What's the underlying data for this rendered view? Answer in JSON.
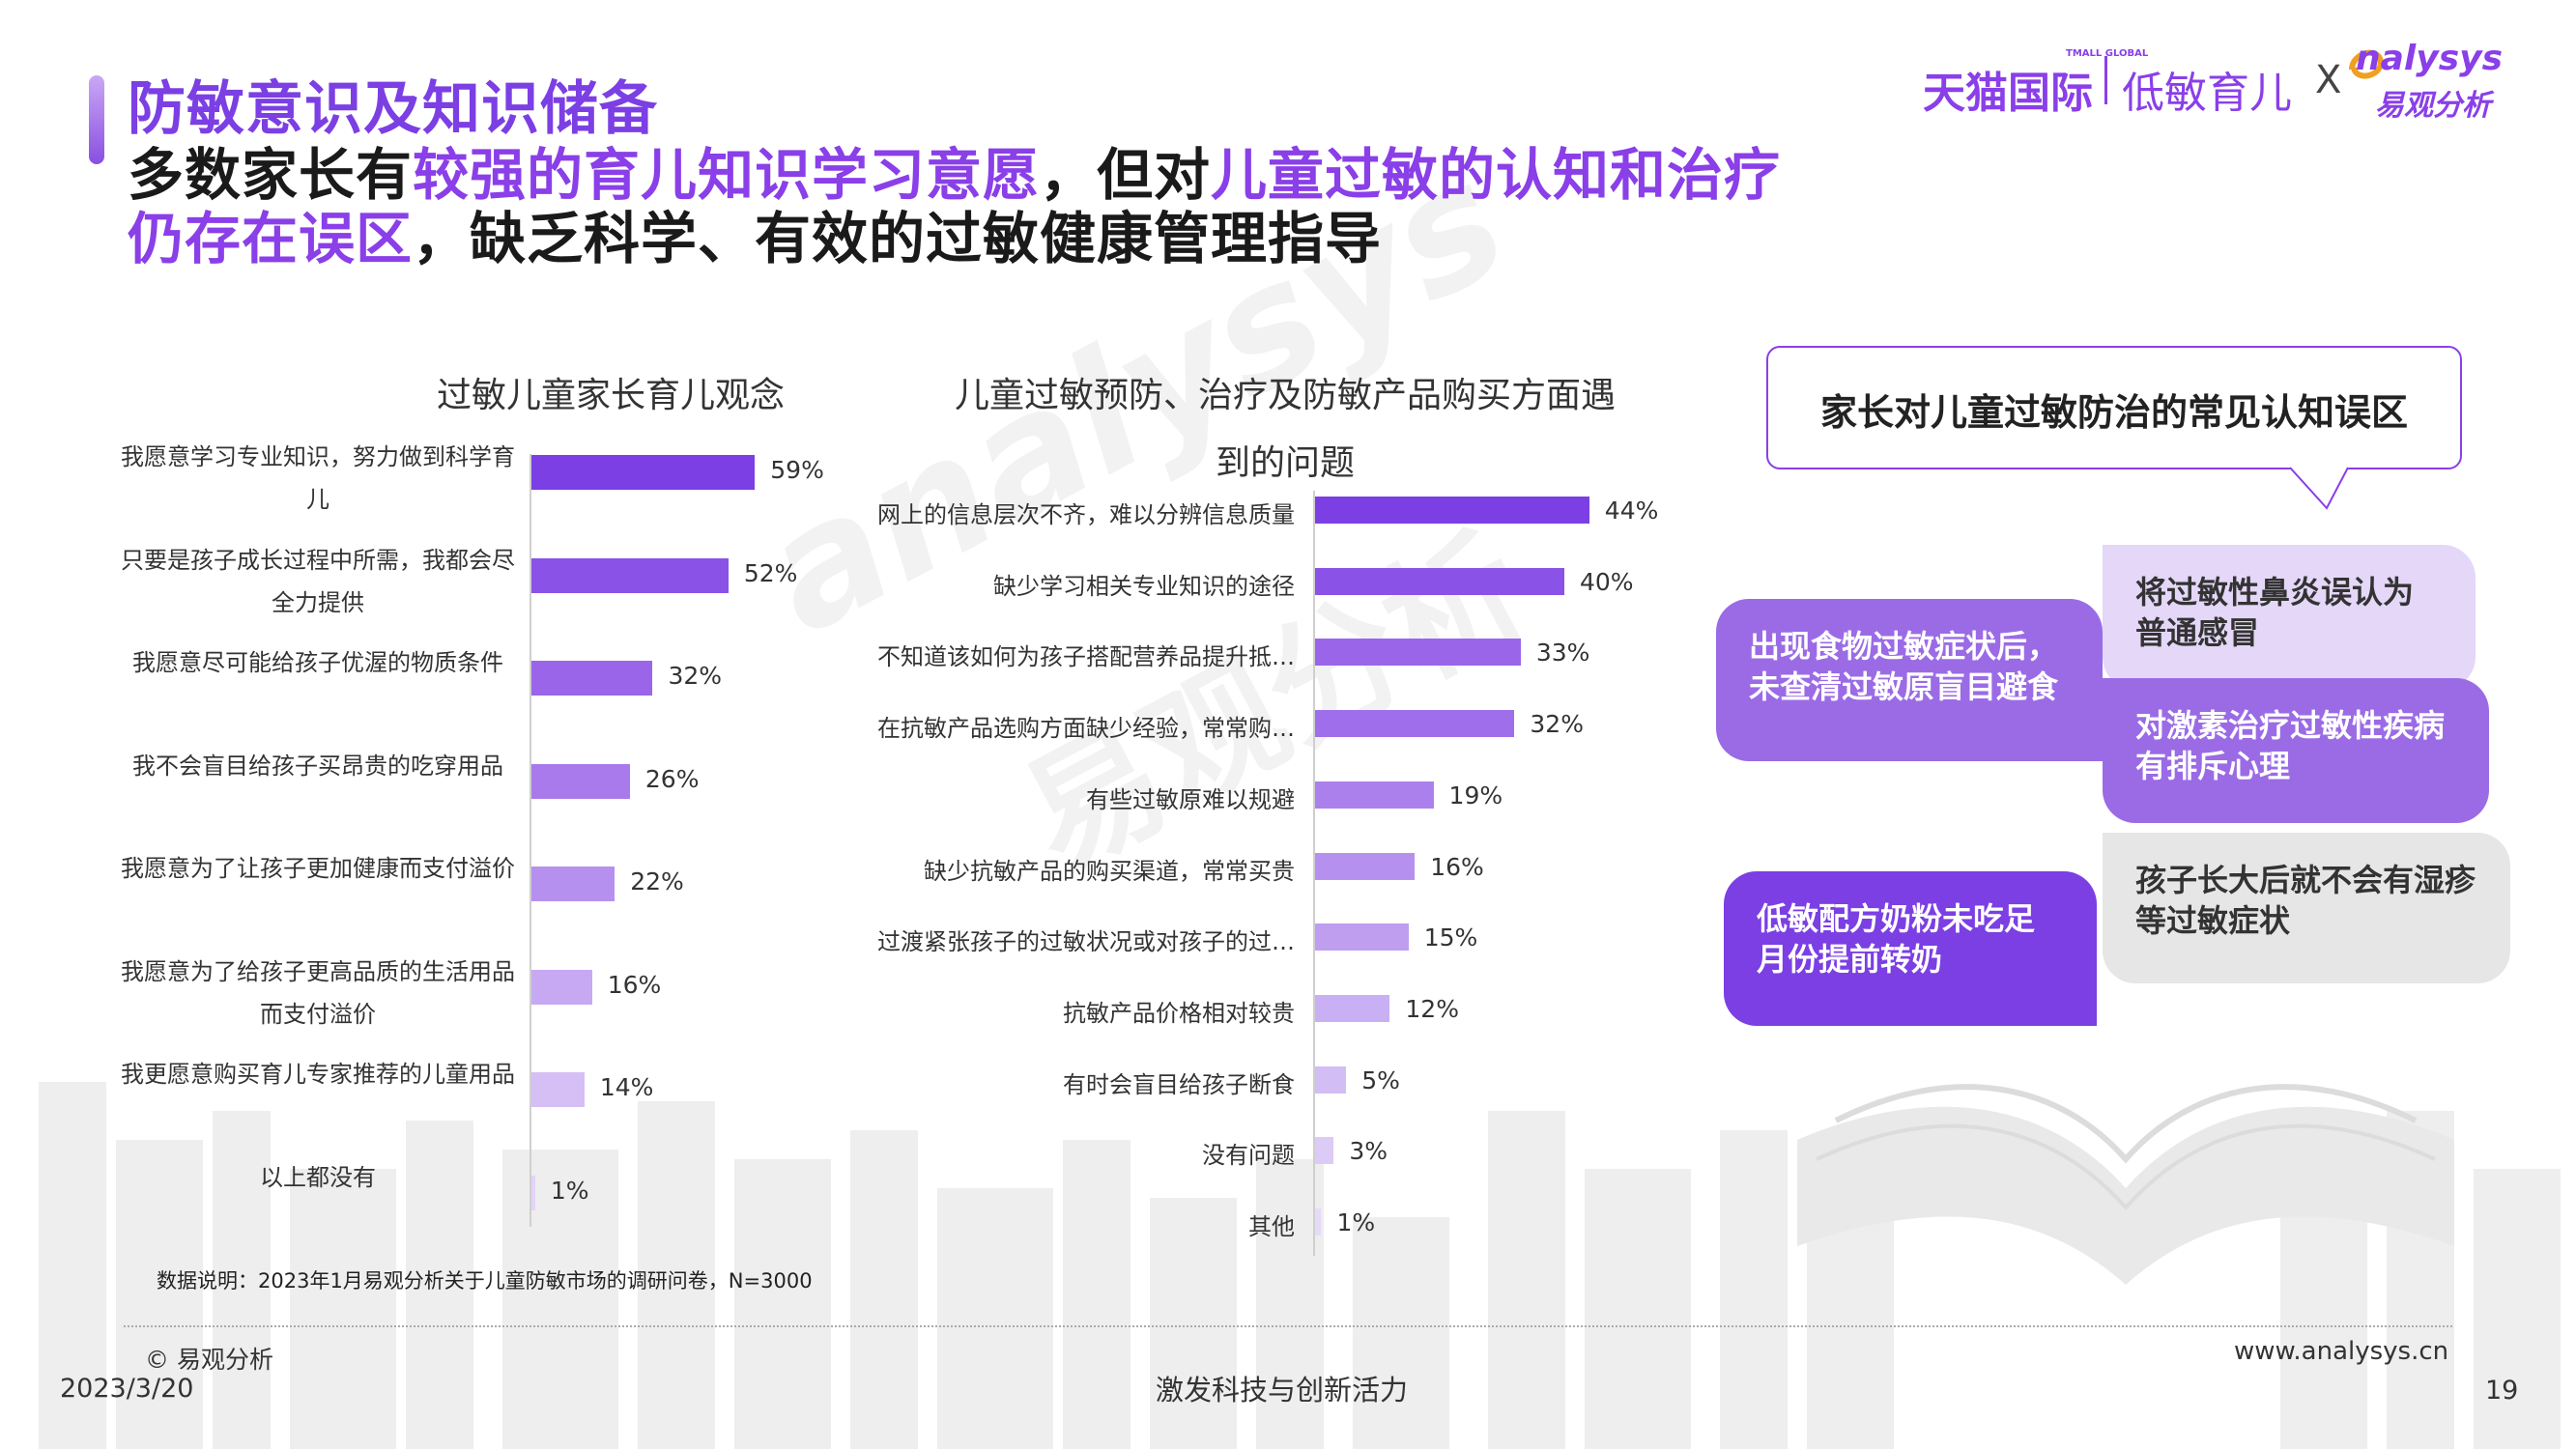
{
  "header": {
    "title_line1": "防敏意识及知识储备",
    "title_line2_a": "多数家长有",
    "title_line2_hl": "较强的育儿知识学习意愿",
    "title_line2_b": "，但对",
    "title_line2_hl2": "儿童过敏的认知和治疗",
    "title_line3_hl": "仍存在误区",
    "title_line3_b": "，缺乏科学、有效的过敏健康管理指导"
  },
  "brand": {
    "tmall": "天猫国际",
    "tmall_small": "TMALL GLOBAL",
    "lowmin": "低敏育儿",
    "x": "X",
    "analysys": "nalysys",
    "analysys_cn": "易观分析"
  },
  "watermark": {
    "text": "analysys",
    "text_cn": "易观分析"
  },
  "chart_data": [
    {
      "type": "bar",
      "orientation": "horizontal",
      "title": "过敏儿童家长育儿观念",
      "categories": [
        "我愿意学习专业知识，努力做到科学育儿",
        "只要是孩子成长过程中所需，我都会尽全力提供",
        "我愿意尽可能给孩子优渥的物质条件",
        "我不会盲目给孩子买昂贵的吃穿用品",
        "我愿意为了让孩子更加健康而支付溢价",
        "我愿意为了给孩子更高品质的生活用品而支付溢价",
        "我更愿意购买育儿专家推荐的儿童用品",
        "以上都没有"
      ],
      "values": [
        59,
        52,
        32,
        26,
        22,
        16,
        14,
        1
      ],
      "value_labels": [
        "59%",
        "52%",
        "32%",
        "26%",
        "22%",
        "16%",
        "14%",
        "1%"
      ],
      "unit": "%",
      "colors": [
        "#7b3fe4",
        "#8a52e6",
        "#9a65e9",
        "#a87aeb",
        "#b690ee",
        "#c6a9f2",
        "#d5bff5",
        "#e3d4f8"
      ]
    },
    {
      "type": "bar",
      "orientation": "horizontal",
      "title": "儿童过敏预防、治疗及防敏产品购买方面遇到的问题",
      "title_line1": "儿童过敏预防、治疗及防敏产品购买方面遇",
      "title_line2": "到的问题",
      "categories": [
        "网上的信息层次不齐，难以分辨信息质量",
        "缺少学习相关专业知识的途径",
        "不知道该如何为孩子搭配营养品提升抵…",
        "在抗敏产品选购方面缺少经验，常常购…",
        "有些过敏原难以规避",
        "缺少抗敏产品的购买渠道，常常买贵",
        "过渡紧张孩子的过敏状况或对孩子的过…",
        "抗敏产品价格相对较贵",
        "有时会盲目给孩子断食",
        "没有问题",
        "其他"
      ],
      "values": [
        44,
        40,
        33,
        32,
        19,
        16,
        15,
        12,
        5,
        3,
        1
      ],
      "value_labels": [
        "44%",
        "40%",
        "33%",
        "32%",
        "19%",
        "16%",
        "15%",
        "12%",
        "5%",
        "3%",
        "1%"
      ],
      "unit": "%",
      "colors": [
        "#7b3fe4",
        "#8a52e6",
        "#9a65e9",
        "#9f6eea",
        "#ab80ec",
        "#b690ee",
        "#bf9ef0",
        "#c9aff3",
        "#d3bdf5",
        "#dccaf7",
        "#e6daf9"
      ]
    }
  ],
  "note": "数据说明：2023年1月易观分析关于儿童防敏市场的调研问卷，N=3000",
  "panel": {
    "callout_title": "家长对儿童过敏防治的常见认知误区",
    "bubbles": [
      "出现食物过敏症状后，未查清过敏原盲目避食",
      "将过敏性鼻炎误认为普通感冒",
      "对激素治疗过敏性疾病有排斥心理",
      "低敏配方奶粉未吃足月份提前转奶",
      "孩子长大后就不会有湿疹等过敏症状"
    ],
    "colors": {
      "dark": "#7b3fe4",
      "mid": "#9b6be6",
      "light": "#e4d7f8",
      "grey": "#e6e6e6"
    }
  },
  "footer": {
    "copyright": "© 易观分析",
    "date": "2023/3/20",
    "slogan": "激发科技与创新活力",
    "url": "www.analysys.cn",
    "page": "19"
  }
}
